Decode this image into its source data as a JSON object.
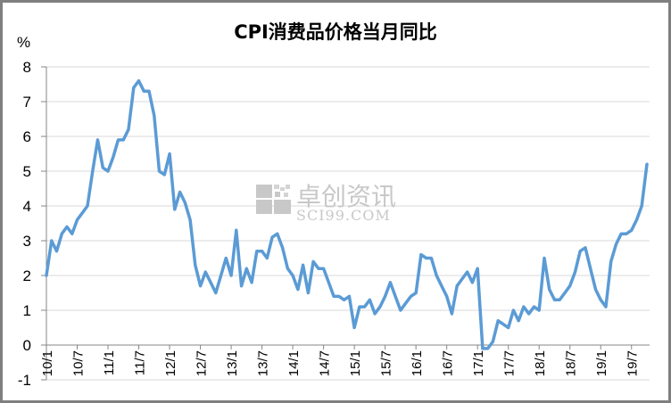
{
  "chart_data": {
    "type": "line",
    "title": "CPI消费品价格当月同比",
    "xlabel": "",
    "ylabel": "%",
    "ylim": [
      -1,
      8
    ],
    "yticks": [
      -1,
      0,
      1,
      2,
      3,
      4,
      5,
      6,
      7,
      8
    ],
    "grid": true,
    "legend": "none",
    "line_color": "#5b9bd5",
    "xtick_labels": [
      "10/1",
      "10/7",
      "11/1",
      "11/7",
      "12/1",
      "12/7",
      "13/1",
      "13/7",
      "14/1",
      "14/7",
      "15/1",
      "15/7",
      "16/1",
      "16/7",
      "17/1",
      "17/7",
      "18/1",
      "18/7",
      "19/1",
      "19/7"
    ],
    "x_start": "2010-01",
    "x_end": "2019-10",
    "series": [
      {
        "name": "CPI消费品价格当月同比",
        "values": [
          2.0,
          3.0,
          2.7,
          3.2,
          3.4,
          3.2,
          3.6,
          3.8,
          4.0,
          5.0,
          5.9,
          5.1,
          5.0,
          5.4,
          5.9,
          5.9,
          6.2,
          7.4,
          7.6,
          7.3,
          7.3,
          6.6,
          5.0,
          4.9,
          5.5,
          3.9,
          4.4,
          4.1,
          3.6,
          2.3,
          1.7,
          2.1,
          1.8,
          1.5,
          2.0,
          2.5,
          2.0,
          3.3,
          1.7,
          2.2,
          1.8,
          2.7,
          2.7,
          2.5,
          3.1,
          3.2,
          2.8,
          2.2,
          2.0,
          1.6,
          2.3,
          1.5,
          2.4,
          2.2,
          2.2,
          1.8,
          1.4,
          1.4,
          1.3,
          1.4,
          0.5,
          1.1,
          1.1,
          1.3,
          0.9,
          1.1,
          1.4,
          1.8,
          1.4,
          1.0,
          1.2,
          1.4,
          1.5,
          2.6,
          2.5,
          2.5,
          2.0,
          1.7,
          1.4,
          0.9,
          1.7,
          1.9,
          2.1,
          1.8,
          2.2,
          -0.1,
          -0.1,
          0.1,
          0.7,
          0.6,
          0.5,
          1.0,
          0.7,
          1.1,
          0.9,
          1.1,
          1.0,
          2.5,
          1.6,
          1.3,
          1.3,
          1.5,
          1.7,
          2.1,
          2.7,
          2.8,
          2.2,
          1.6,
          1.3,
          1.1,
          2.4,
          2.9,
          3.2,
          3.2,
          3.3,
          3.6,
          4.0,
          5.2
        ]
      }
    ]
  },
  "watermark": {
    "cn": "卓创资讯",
    "en": "SCI99.COM"
  },
  "header": {
    "title": "CPI消费品价格当月同比",
    "unit": "%"
  }
}
